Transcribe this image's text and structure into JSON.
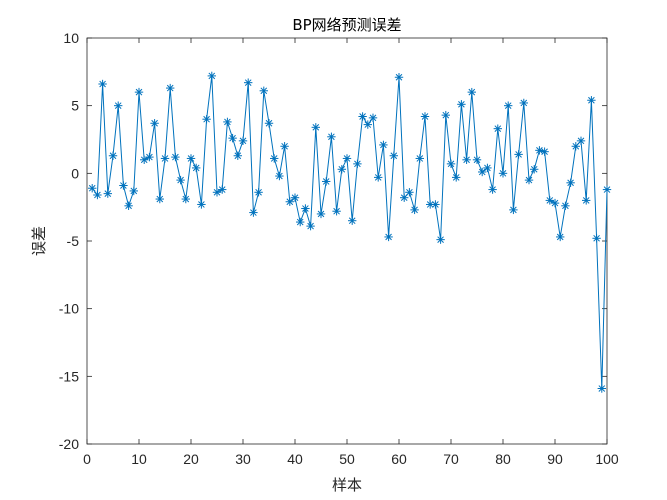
{
  "chart_data": {
    "type": "line",
    "title": "BP网络预测误差",
    "xlabel": "样本",
    "ylabel": "误差",
    "xlim": [
      0,
      100
    ],
    "ylim": [
      -20,
      10
    ],
    "xticks": [
      0,
      10,
      20,
      30,
      40,
      50,
      60,
      70,
      80,
      90,
      100
    ],
    "yticks": [
      -20,
      -15,
      -10,
      -5,
      0,
      5,
      10
    ],
    "xtick_labels": [
      "0",
      "10",
      "20",
      "30",
      "40",
      "50",
      "60",
      "70",
      "80",
      "90",
      "100"
    ],
    "ytick_labels": [
      "-20",
      "-15",
      "-10",
      "-5",
      "0",
      "5",
      "10"
    ],
    "grid": false,
    "legend": "none",
    "marker": "asterisk",
    "color": "#0072BD",
    "x": [
      1,
      2,
      3,
      4,
      5,
      6,
      7,
      8,
      9,
      10,
      11,
      12,
      13,
      14,
      15,
      16,
      17,
      18,
      19,
      20,
      21,
      22,
      23,
      24,
      25,
      26,
      27,
      28,
      29,
      30,
      31,
      32,
      33,
      34,
      35,
      36,
      37,
      38,
      39,
      40,
      41,
      42,
      43,
      44,
      45,
      46,
      47,
      48,
      49,
      50,
      51,
      52,
      53,
      54,
      55,
      56,
      57,
      58,
      59,
      60,
      61,
      62,
      63,
      64,
      65,
      66,
      67,
      68,
      69,
      70,
      71,
      72,
      73,
      74,
      75,
      76,
      77,
      78,
      79,
      80,
      81,
      82,
      83,
      84,
      85,
      86,
      87,
      88,
      89,
      90,
      91,
      92,
      93,
      94,
      95,
      96,
      97,
      98,
      99,
      100
    ],
    "values": [
      -1.1,
      -1.6,
      6.6,
      -1.5,
      1.3,
      5.0,
      -0.9,
      -2.4,
      -1.3,
      6.0,
      1.0,
      1.2,
      3.7,
      -1.9,
      1.1,
      6.3,
      1.2,
      -0.5,
      -1.9,
      1.1,
      0.4,
      -2.3,
      4.0,
      7.2,
      -1.4,
      -1.2,
      3.8,
      2.6,
      1.3,
      2.4,
      6.7,
      -2.9,
      -1.4,
      6.1,
      3.7,
      1.1,
      -0.2,
      2.0,
      -2.1,
      -1.8,
      -3.6,
      -2.6,
      -3.9,
      3.4,
      -3.0,
      -0.6,
      2.7,
      -2.8,
      0.3,
      1.1,
      -3.5,
      0.7,
      4.2,
      3.6,
      4.1,
      -0.3,
      2.1,
      -4.7,
      1.3,
      7.1,
      -1.8,
      -1.4,
      -2.7,
      1.1,
      4.2,
      -2.3,
      -2.3,
      -4.9,
      4.3,
      0.7,
      -0.3,
      5.1,
      1.0,
      6.0,
      1.0,
      0.1,
      0.4,
      -1.2,
      3.3,
      0.0,
      5.0,
      -2.7,
      1.4,
      5.2,
      -0.5,
      0.3,
      1.7,
      1.6,
      -2.0,
      -2.2,
      -4.7,
      -2.4,
      -0.7,
      2.0,
      2.4,
      -2.0,
      5.4,
      -4.8,
      -15.9,
      -1.2
    ]
  }
}
